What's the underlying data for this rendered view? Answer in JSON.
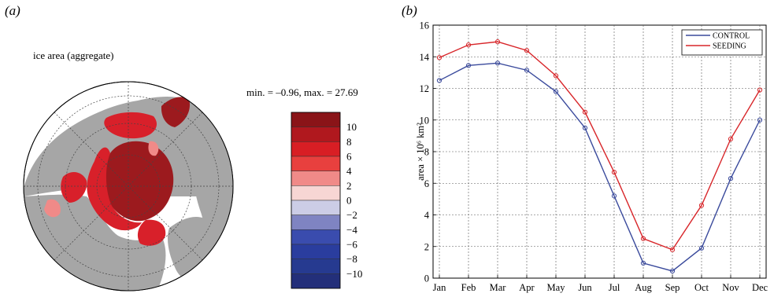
{
  "panel_a": {
    "label": "(a)",
    "title": "ice area (aggregate)",
    "minmax": "min. = –0.96, max. = 27.69",
    "colorbar": {
      "ticks": [
        "10",
        "8",
        "6",
        "4",
        "2",
        "0",
        "−2",
        "−4",
        "−6",
        "−8",
        "−10"
      ],
      "colors": [
        "#8a1418",
        "#b0181e",
        "#d81e24",
        "#e8403e",
        "#f08a88",
        "#f7d6d4",
        "#cccde6",
        "#7f84c2",
        "#3a4cae",
        "#2a3d9e",
        "#263a90",
        "#232f7a"
      ]
    },
    "map_colors": {
      "land": "#a6a6a6",
      "ocean": "#ffffff",
      "ice_high": "#9c1a1e",
      "ice_mid": "#d8202a",
      "ice_low": "#f08a88"
    }
  },
  "panel_b": {
    "label": "(b)",
    "chart_data": {
      "type": "line",
      "x": [
        "Jan",
        "Feb",
        "Mar",
        "Apr",
        "May",
        "Jun",
        "Jul",
        "Aug",
        "Sep",
        "Oct",
        "Nov",
        "Dec"
      ],
      "ylabel": "area × 10⁶ km²",
      "ylim": [
        0,
        16
      ],
      "yticks": [
        "0",
        "2",
        "4",
        "6",
        "8",
        "10",
        "12",
        "14",
        "16"
      ],
      "legend_position": "top-right",
      "series": [
        {
          "name": "CONTROL",
          "color": "#3a4a9c",
          "values": [
            12.5,
            13.45,
            13.6,
            13.15,
            11.8,
            9.5,
            5.2,
            0.95,
            0.45,
            1.9,
            6.3,
            10.0
          ]
        },
        {
          "name": "SEEDING",
          "color": "#d8262a",
          "values": [
            13.95,
            14.75,
            14.95,
            14.4,
            12.8,
            10.5,
            6.7,
            2.5,
            1.8,
            4.6,
            8.8,
            11.9
          ]
        }
      ]
    }
  }
}
